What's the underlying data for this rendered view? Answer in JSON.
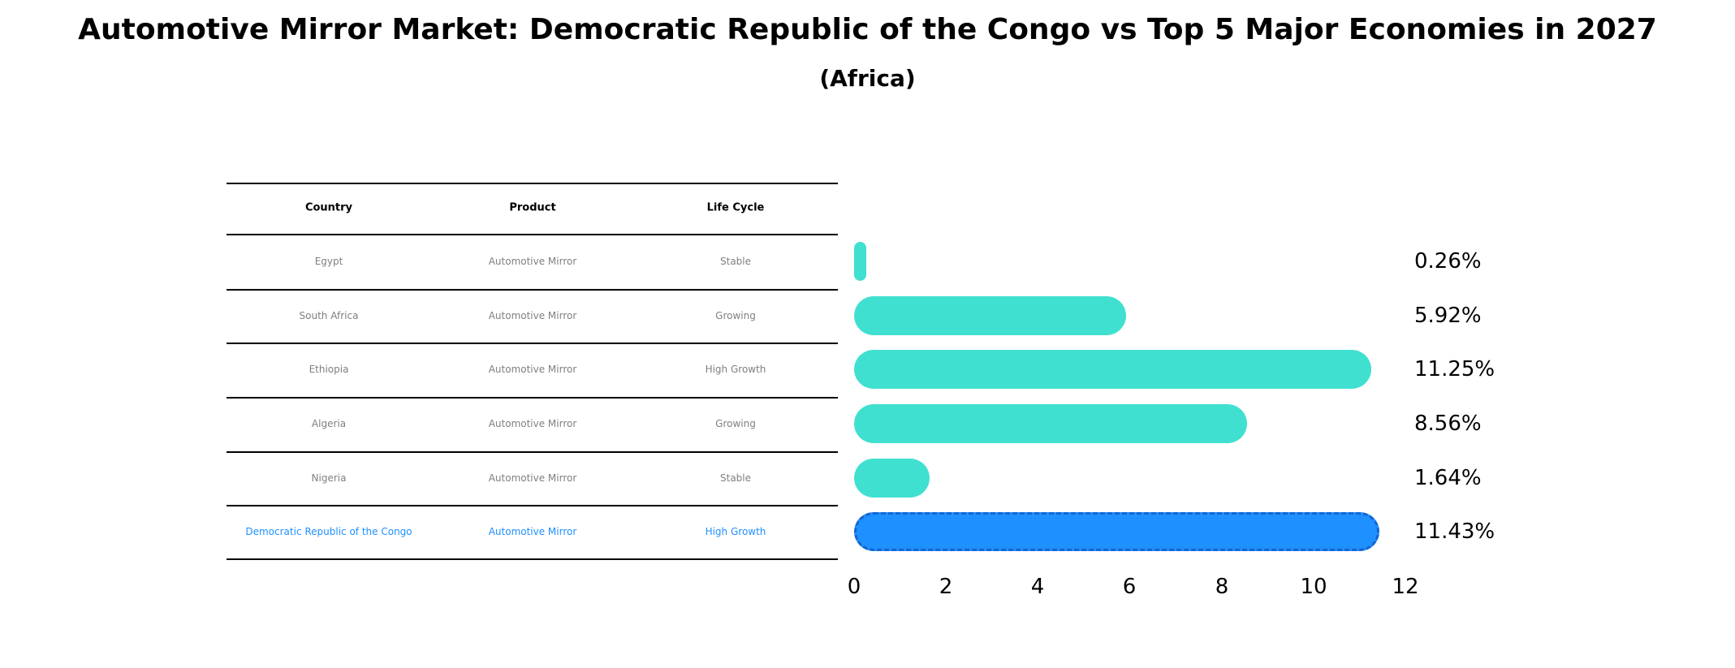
{
  "table": {
    "headers": [
      "Country",
      "Product",
      "Life Cycle"
    ],
    "rows": [
      {
        "country": "Egypt",
        "product": "Automotive Mirror",
        "life_cycle": "Stable",
        "highlight": false
      },
      {
        "country": "South Africa",
        "product": "Automotive Mirror",
        "life_cycle": "Growing",
        "highlight": false
      },
      {
        "country": "Ethiopia",
        "product": "Automotive Mirror",
        "life_cycle": "High Growth",
        "highlight": false
      },
      {
        "country": "Algeria",
        "product": "Automotive Mirror",
        "life_cycle": "Growing",
        "highlight": false
      },
      {
        "country": "Nigeria",
        "product": "Automotive Mirror",
        "life_cycle": "Stable",
        "highlight": false
      },
      {
        "country": "Democratic Republic of the Congo",
        "product": "Automotive Mirror",
        "life_cycle": "High Growth",
        "highlight": true
      }
    ]
  },
  "chart_data": {
    "type": "bar",
    "orientation": "horizontal",
    "title": "Automotive Mirror Market: Democratic Republic of the Congo vs Top 5 Major Economies in 2027",
    "subtitle": "(Africa)",
    "categories": [
      "Egypt",
      "South Africa",
      "Ethiopia",
      "Algeria",
      "Nigeria",
      "Democratic Republic of the Congo"
    ],
    "values": [
      0.26,
      5.92,
      11.25,
      8.56,
      1.64,
      11.43
    ],
    "value_labels": [
      "0.26%",
      "5.92%",
      "11.25%",
      "8.56%",
      "1.64%",
      "11.43%"
    ],
    "xlim": [
      0,
      12
    ],
    "xticks": [
      0,
      2,
      4,
      6,
      8,
      10,
      12
    ],
    "grid": false,
    "legend": false,
    "bar_color": "#40E0D0",
    "highlight_color": "#1E90FF",
    "highlight_border_color": "#1565D0",
    "highlight_index": 5
  }
}
